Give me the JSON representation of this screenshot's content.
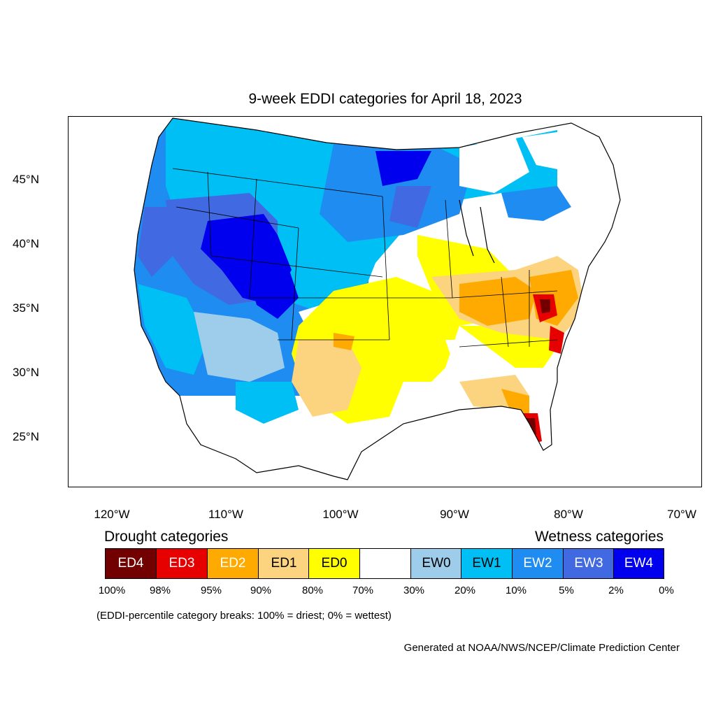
{
  "title": "9-week EDDI categories for April 18, 2023",
  "map": {
    "x_ticks": [
      "120°W",
      "110°W",
      "100°W",
      "90°W",
      "80°W",
      "70°W"
    ],
    "y_ticks": [
      "45°N",
      "40°N",
      "35°N",
      "30°N",
      "25°N"
    ],
    "lon_range": [
      -124,
      -68.5
    ],
    "lat_range": [
      21,
      50
    ]
  },
  "legend": {
    "drought_heading": "Drought categories",
    "wetness_heading": "Wetness categories",
    "categories": [
      {
        "label": "ED4",
        "color": "#730000",
        "text_color": "#ffffff"
      },
      {
        "label": "ED3",
        "color": "#e60000",
        "text_color": "#ffffff"
      },
      {
        "label": "ED2",
        "color": "#ffaa00",
        "text_color": "#ffffff"
      },
      {
        "label": "ED1",
        "color": "#fcd37f",
        "text_color": "#000000"
      },
      {
        "label": "ED0",
        "color": "#ffff00",
        "text_color": "#000000"
      },
      {
        "label": "",
        "color": "#ffffff",
        "text_color": "#000000"
      },
      {
        "label": "EW0",
        "color": "#9dcdeb",
        "text_color": "#000000"
      },
      {
        "label": "EW1",
        "color": "#00bff5",
        "text_color": "#000000"
      },
      {
        "label": "EW2",
        "color": "#1e8cf0",
        "text_color": "#ffffff"
      },
      {
        "label": "EW3",
        "color": "#4169e1",
        "text_color": "#ffffff"
      },
      {
        "label": "EW4",
        "color": "#0000ee",
        "text_color": "#ffffff"
      }
    ],
    "breaks": [
      "100%",
      "98%",
      "95%",
      "90%",
      "80%",
      "70%",
      "30%",
      "20%",
      "10%",
      "5%",
      "2%",
      "0%"
    ]
  },
  "footnote": "(EDDI-percentile category breaks: 100% = driest; 0% = wettest)",
  "credit": "Generated at NOAA/NWS/NCEP/Climate Prediction Center"
}
